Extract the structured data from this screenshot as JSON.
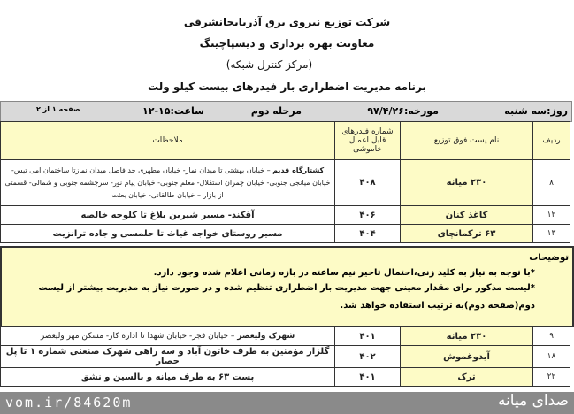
{
  "header": {
    "line1": "شرکت توزیع نیروی برق آذربایجانشرقی",
    "line2": "معاونت بهره برداری و دیسپاچینگ",
    "line3": "(مرکز کنترل شبکه)",
    "line4": "برنامه مدیریت اضطراری بار فیدرهای بیست کیلو ولت"
  },
  "infobar": {
    "day": "روز:سه شنبه",
    "date": "مورخه:۹۷/۴/۲۶",
    "stage": "مرحله دوم",
    "time": "ساعت:۱۵-۱۲",
    "page": "صفحه ۱ از ۲"
  },
  "columns": {
    "row": "ردیف",
    "substation": "نام پست فوق توزیع",
    "feeders": "شماره فیدرهای قابل اعمال خاموشی",
    "remarks": "ملاحظات"
  },
  "rows_top": [
    {
      "row": "۸",
      "substation": "۲۳۰ میانه",
      "feeder": "۴۰۸",
      "remarks_bold": "کشتارگاه قدیم",
      "remarks": " – خیابان بهشتی تا میدان نماز- خیابان مطهری حد فاصل میدان نمازتا ساختمان امی تیس- خیابان میانجی جنوبی- خیابان چمران استقلال- معلم جنوبی- خیابان پیام نور- سرچشمه جنوبی و شمالی- قسمتی از بازار – خیابان طالقانی- خیابان بعثت"
    },
    {
      "row": "۱۲",
      "substation": "کاغذ کنان",
      "feeder": "۴۰۶",
      "remarks_bold": "آقکند- مسیر شیرین بلاغ تا کلوجه خالصه",
      "remarks": ""
    },
    {
      "row": "۱۳",
      "substation": "۶۳ ترکمانچای",
      "feeder": "۴۰۴",
      "remarks_bold": "مسیر روستای خواجه غیاث تا حلمسی و جاده ترانزیت",
      "remarks": ""
    }
  ],
  "notes": {
    "title": "توضیحات",
    "n1": "*با توجه به نیاز به کلید زنی،احتمال تاخیر  نیم ساعته در بازه زمانی اعلام شده وجود دارد.",
    "n2": "*لیست مذکور برای مقدار معینی جهت مدیریت بار اضطراری تنظیم شده و در صورت نیاز به مدیریت بیشتر از لیست دوم(صفحه دوم)به ترتیب استفاده خواهد شد."
  },
  "rows_bottom": [
    {
      "row": "۹",
      "substation": "۲۳۰ میانه",
      "feeder": "۴۰۱",
      "remarks_bold": "شهرک ولیعصر",
      "remarks": " – خیابان فجر- خیابان شهدا تا اداره کار- مسکن مهر ولیعصر"
    },
    {
      "row": "۱۸",
      "substation": "آیدوغموش",
      "feeder": "۴۰۲",
      "remarks_bold": "گلزار مؤمنین به طرف خاتون آباد و سه راهی شهرک صنعتی شماره ۱ تا پل حصار",
      "remarks": ""
    },
    {
      "row": "۲۲",
      "substation": "ترک",
      "feeder": "۴۰۱",
      "remarks_bold": "پست ۶۳ به طرف میانه و بالسین و نشق",
      "remarks": ""
    }
  ],
  "footer": {
    "url": "vom.ir/84620m",
    "logo": "صدای میانه"
  }
}
